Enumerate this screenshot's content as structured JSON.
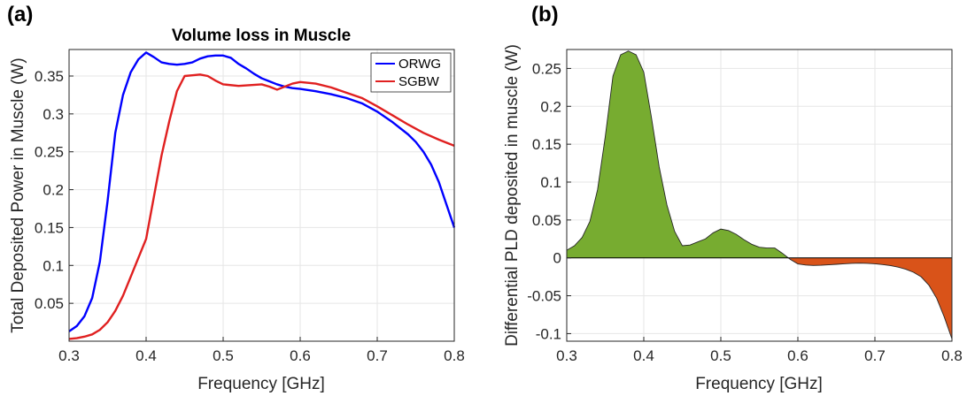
{
  "chart_data": [
    {
      "panel_label": "(a)",
      "type": "line",
      "title": "Volume loss in Muscle",
      "xlabel": "Frequency [GHz]",
      "ylabel": "Total Deposited Power in Muscle (W)",
      "xlim": [
        0.3,
        0.8
      ],
      "ylim": [
        0.0,
        0.385
      ],
      "xticks": [
        "0.3",
        "0.4",
        "0.5",
        "0.6",
        "0.7",
        "0.8"
      ],
      "xtick_values": [
        0.3,
        0.4,
        0.5,
        0.6,
        0.7,
        0.8
      ],
      "yticks": [
        "0.05",
        "0.1",
        "0.15",
        "0.2",
        "0.25",
        "0.3",
        "0.35"
      ],
      "ytick_values": [
        0.05,
        0.1,
        0.15,
        0.2,
        0.25,
        0.3,
        0.35
      ],
      "grid": true,
      "legend_position": "top-right",
      "series": [
        {
          "name": "ORWG",
          "color": "#0000ff",
          "x": [
            0.3,
            0.31,
            0.32,
            0.33,
            0.34,
            0.35,
            0.36,
            0.37,
            0.38,
            0.39,
            0.4,
            0.41,
            0.42,
            0.43,
            0.44,
            0.45,
            0.46,
            0.47,
            0.48,
            0.49,
            0.5,
            0.51,
            0.52,
            0.53,
            0.54,
            0.55,
            0.56,
            0.57,
            0.58,
            0.59,
            0.6,
            0.62,
            0.64,
            0.66,
            0.68,
            0.7,
            0.72,
            0.74,
            0.75,
            0.76,
            0.77,
            0.78,
            0.79,
            0.8
          ],
          "y": [
            0.013,
            0.02,
            0.033,
            0.057,
            0.105,
            0.185,
            0.275,
            0.325,
            0.355,
            0.372,
            0.381,
            0.375,
            0.368,
            0.366,
            0.365,
            0.366,
            0.368,
            0.373,
            0.376,
            0.377,
            0.377,
            0.374,
            0.366,
            0.36,
            0.353,
            0.347,
            0.343,
            0.339,
            0.336,
            0.334,
            0.333,
            0.33,
            0.326,
            0.321,
            0.314,
            0.303,
            0.289,
            0.273,
            0.263,
            0.25,
            0.233,
            0.21,
            0.18,
            0.15
          ]
        },
        {
          "name": "SGBW",
          "color": "#e02020",
          "x": [
            0.3,
            0.31,
            0.32,
            0.33,
            0.34,
            0.35,
            0.36,
            0.37,
            0.38,
            0.39,
            0.4,
            0.41,
            0.42,
            0.43,
            0.44,
            0.45,
            0.46,
            0.47,
            0.48,
            0.49,
            0.5,
            0.52,
            0.55,
            0.56,
            0.57,
            0.58,
            0.59,
            0.6,
            0.62,
            0.64,
            0.66,
            0.68,
            0.7,
            0.72,
            0.74,
            0.76,
            0.78,
            0.8
          ],
          "y": [
            0.003,
            0.004,
            0.006,
            0.009,
            0.015,
            0.025,
            0.04,
            0.06,
            0.085,
            0.11,
            0.135,
            0.19,
            0.245,
            0.29,
            0.33,
            0.35,
            0.351,
            0.352,
            0.35,
            0.344,
            0.339,
            0.337,
            0.339,
            0.336,
            0.332,
            0.336,
            0.34,
            0.342,
            0.34,
            0.335,
            0.328,
            0.321,
            0.31,
            0.298,
            0.286,
            0.275,
            0.266,
            0.258
          ]
        }
      ]
    },
    {
      "panel_label": "(b)",
      "type": "area",
      "title": "",
      "xlabel": "Frequency [GHz]",
      "ylabel": "Differential PLD deposited in muscle (W)",
      "xlim": [
        0.3,
        0.8
      ],
      "ylim": [
        -0.11,
        0.275
      ],
      "xticks": [
        "0.3",
        "0.4",
        "0.5",
        "0.6",
        "0.7",
        "0.8"
      ],
      "xtick_values": [
        0.3,
        0.4,
        0.5,
        0.6,
        0.7,
        0.8
      ],
      "yticks": [
        "-0.1",
        "-0.05",
        "0",
        "0.05",
        "0.1",
        "0.15",
        "0.2",
        "0.25"
      ],
      "ytick_values": [
        -0.1,
        -0.05,
        0,
        0.05,
        0.1,
        0.15,
        0.2,
        0.25
      ],
      "grid": true,
      "positive_color": "#77ac30",
      "negative_color": "#d95319",
      "series": [
        {
          "name": "",
          "x": [
            0.3,
            0.31,
            0.32,
            0.33,
            0.34,
            0.35,
            0.36,
            0.37,
            0.38,
            0.39,
            0.4,
            0.41,
            0.42,
            0.43,
            0.44,
            0.45,
            0.46,
            0.47,
            0.48,
            0.49,
            0.5,
            0.51,
            0.52,
            0.53,
            0.54,
            0.55,
            0.56,
            0.57,
            0.58,
            0.59,
            0.6,
            0.61,
            0.62,
            0.63,
            0.64,
            0.65,
            0.66,
            0.67,
            0.68,
            0.69,
            0.7,
            0.71,
            0.72,
            0.73,
            0.74,
            0.75,
            0.76,
            0.77,
            0.78,
            0.79,
            0.8
          ],
          "y": [
            0.01,
            0.016,
            0.027,
            0.048,
            0.09,
            0.16,
            0.24,
            0.268,
            0.273,
            0.268,
            0.245,
            0.185,
            0.12,
            0.07,
            0.035,
            0.016,
            0.017,
            0.021,
            0.025,
            0.033,
            0.038,
            0.036,
            0.031,
            0.024,
            0.018,
            0.014,
            0.013,
            0.013,
            0.006,
            -0.002,
            -0.008,
            -0.0095,
            -0.01,
            -0.0098,
            -0.0092,
            -0.0085,
            -0.0078,
            -0.0073,
            -0.007,
            -0.0072,
            -0.0078,
            -0.0088,
            -0.0102,
            -0.0122,
            -0.015,
            -0.019,
            -0.025,
            -0.036,
            -0.053,
            -0.078,
            -0.107
          ]
        }
      ]
    }
  ]
}
